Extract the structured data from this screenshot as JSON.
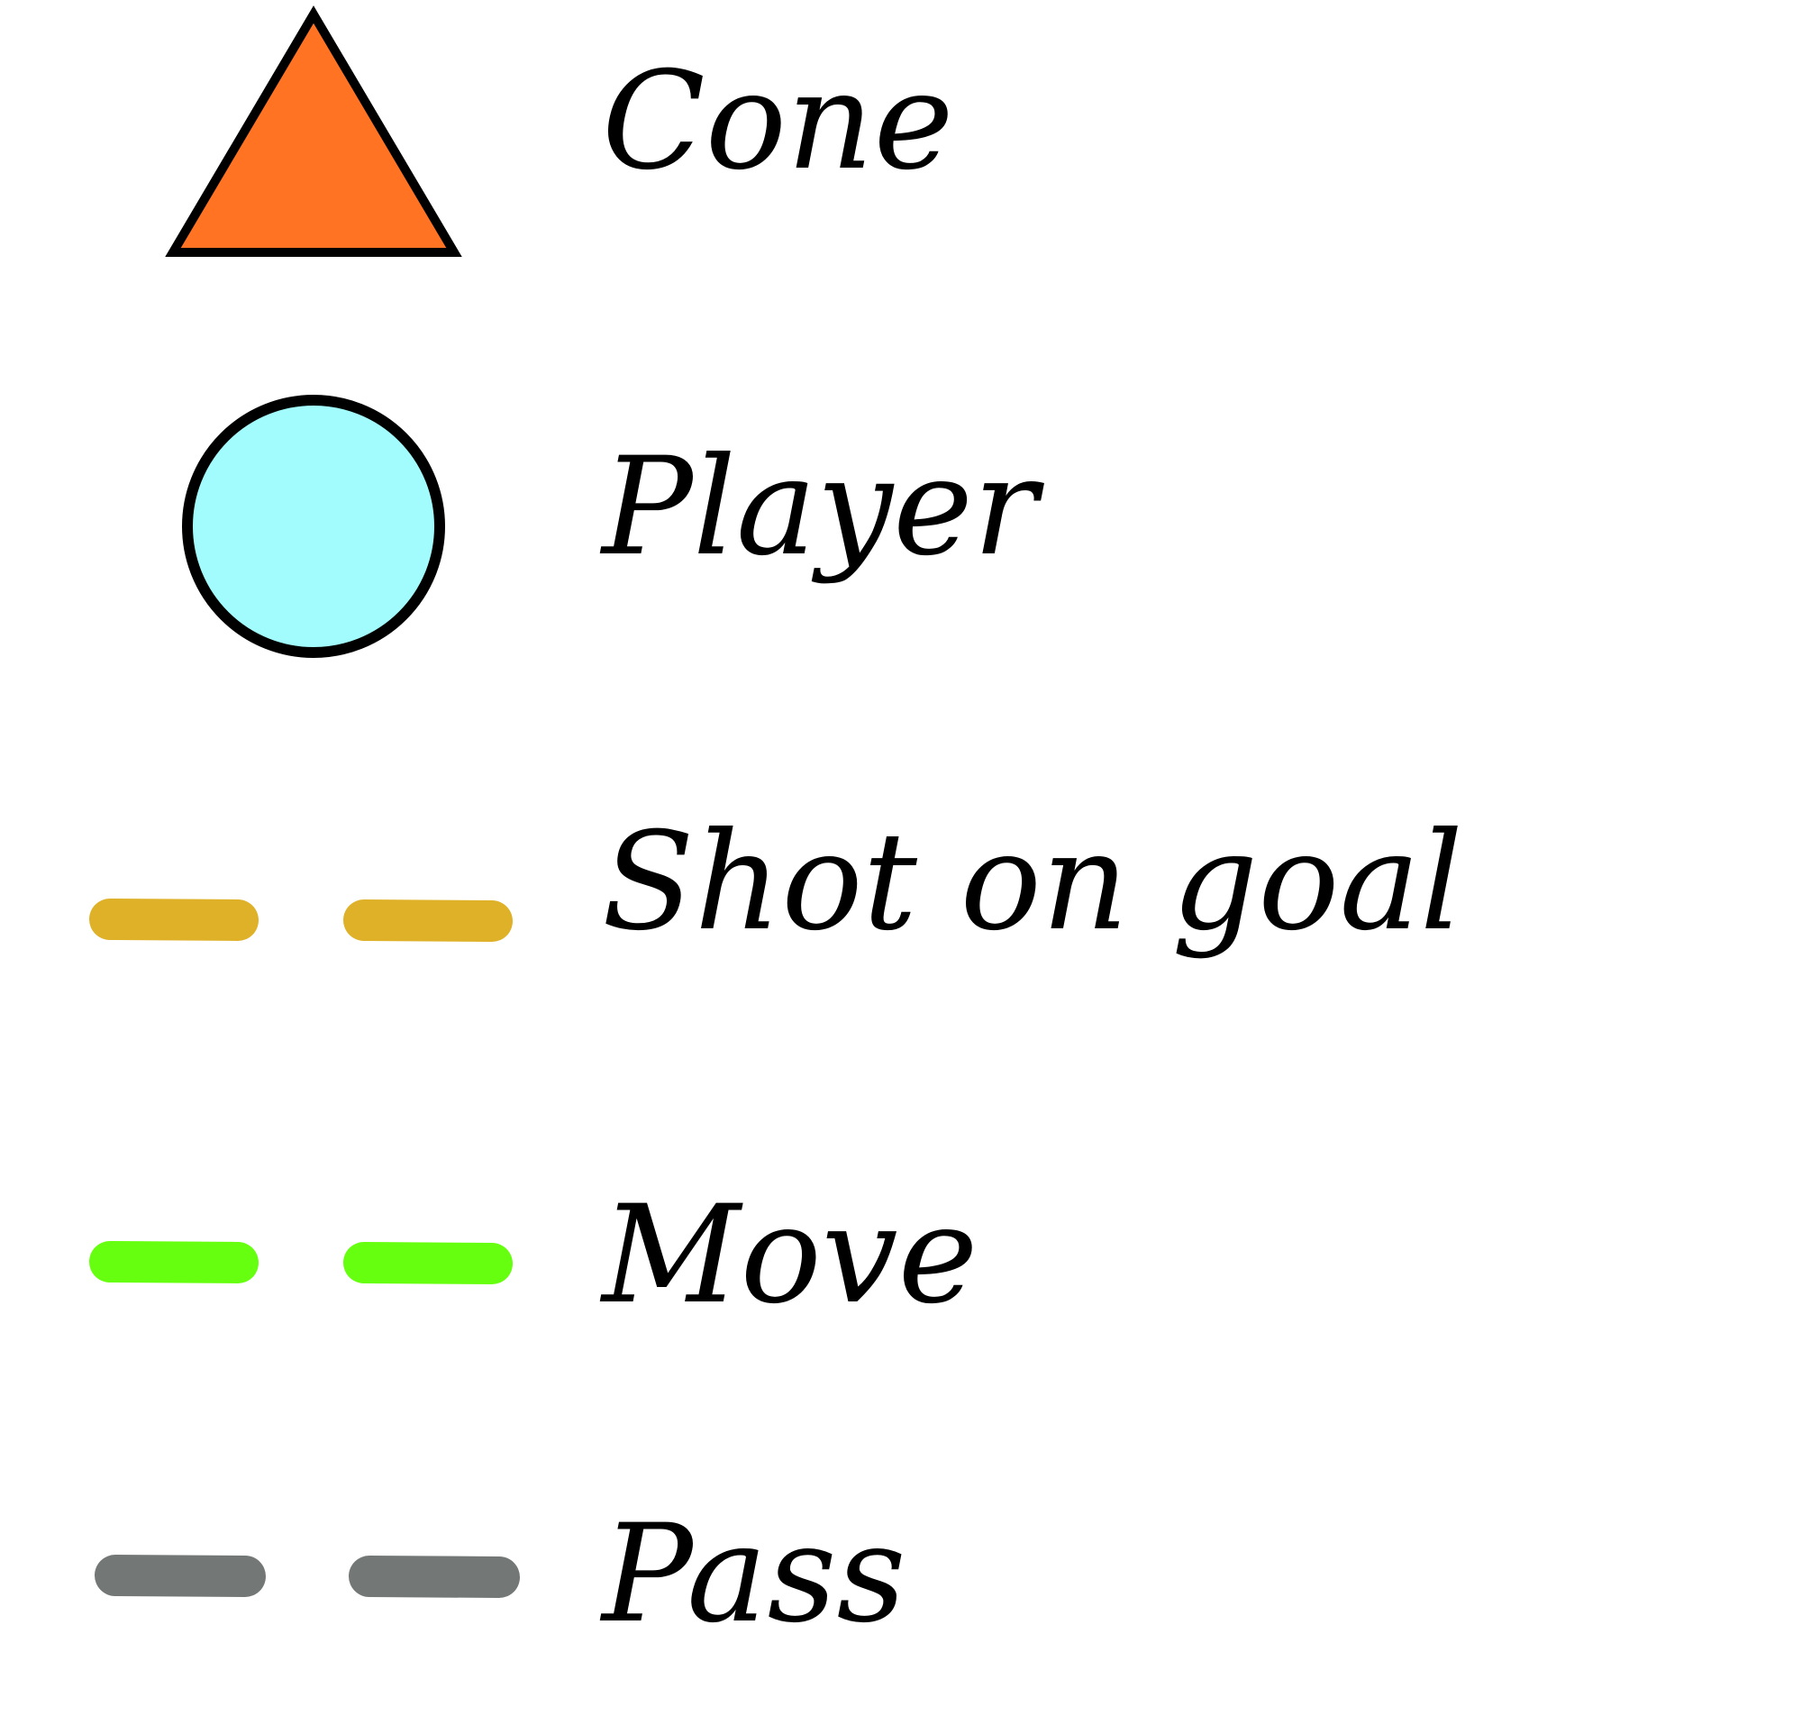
{
  "legend": {
    "items": [
      {
        "key": "cone",
        "label": "Cone",
        "symbol": "triangle",
        "fill": "#FF7322",
        "stroke": "#000000"
      },
      {
        "key": "player",
        "label": "Player",
        "symbol": "circle",
        "fill": "#A2FBFC",
        "stroke": "#000000"
      },
      {
        "key": "shot",
        "label": "Shot on goal",
        "symbol": "dashed-line",
        "color": "#DFB128"
      },
      {
        "key": "move",
        "label": "Move",
        "symbol": "dashed-line",
        "color": "#66FF0F"
      },
      {
        "key": "pass",
        "label": "Pass",
        "symbol": "dashed-line",
        "color": "#737877"
      }
    ]
  }
}
